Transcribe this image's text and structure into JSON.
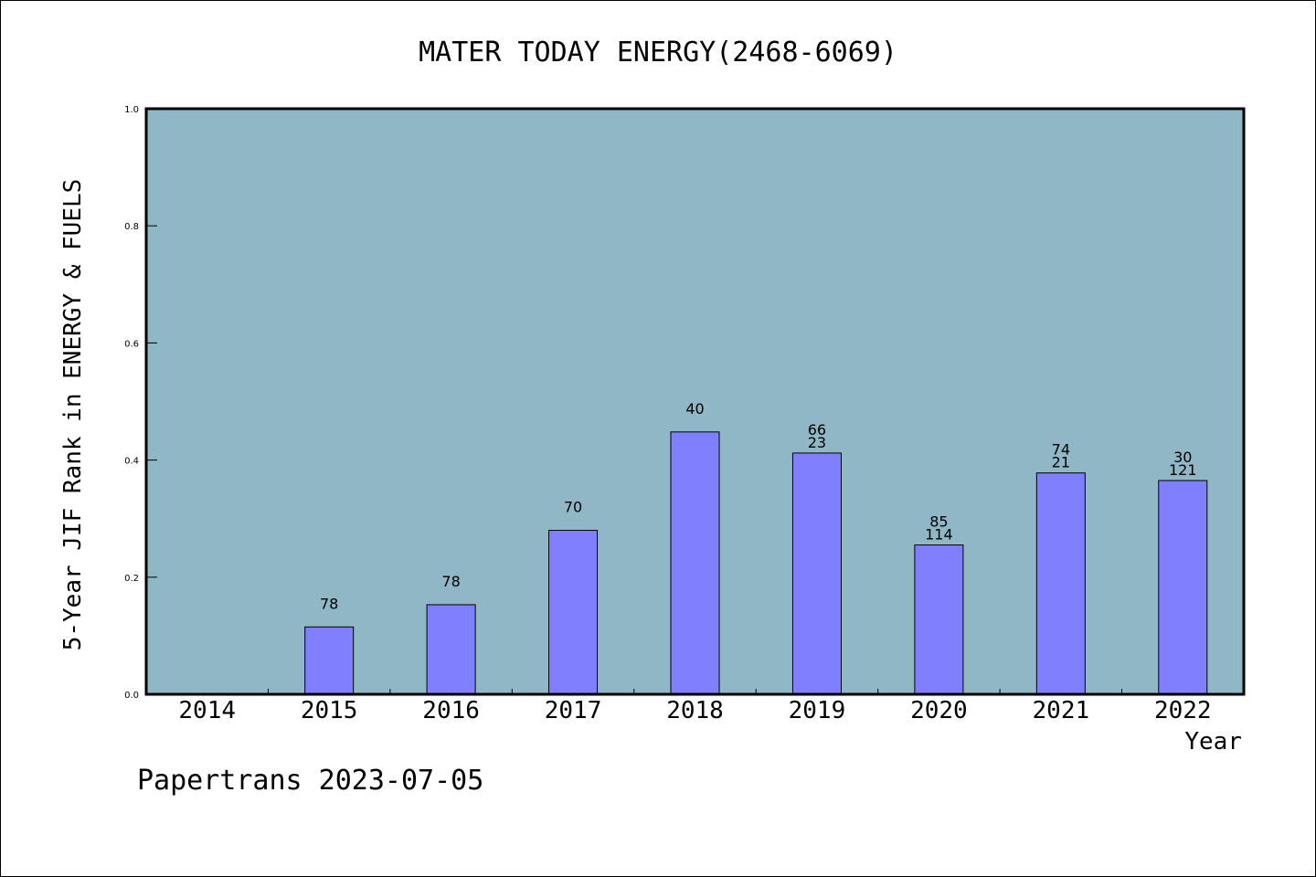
{
  "chart_data": {
    "type": "bar",
    "title": "MATER TODAY ENERGY(2468-6069)",
    "xlabel": "Year",
    "ylabel": "5-Year JIF Rank in ENERGY & FUELS",
    "ylim": [
      0.0,
      1.0
    ],
    "yticks": [
      "0.0",
      "0.2",
      "0.4",
      "0.6",
      "0.8",
      "1.0"
    ],
    "categories": [
      "2014",
      "2015",
      "2016",
      "2017",
      "2018",
      "2019",
      "2020",
      "2021",
      "2022"
    ],
    "values": [
      null,
      0.115,
      0.153,
      0.28,
      0.448,
      0.412,
      0.255,
      0.378,
      0.365
    ],
    "label_top": [
      "",
      "",
      "",
      "",
      "",
      "66",
      "85",
      "74",
      "30"
    ],
    "label_bottom": [
      "",
      "78",
      "78",
      "70",
      "40",
      "23",
      "114",
      "21",
      "121"
    ],
    "grid": false,
    "colors": {
      "plot_bg": "#8fb7c6",
      "bar": "#8080ff",
      "frame": "#000000"
    }
  },
  "footer": "Papertrans 2023-07-05"
}
